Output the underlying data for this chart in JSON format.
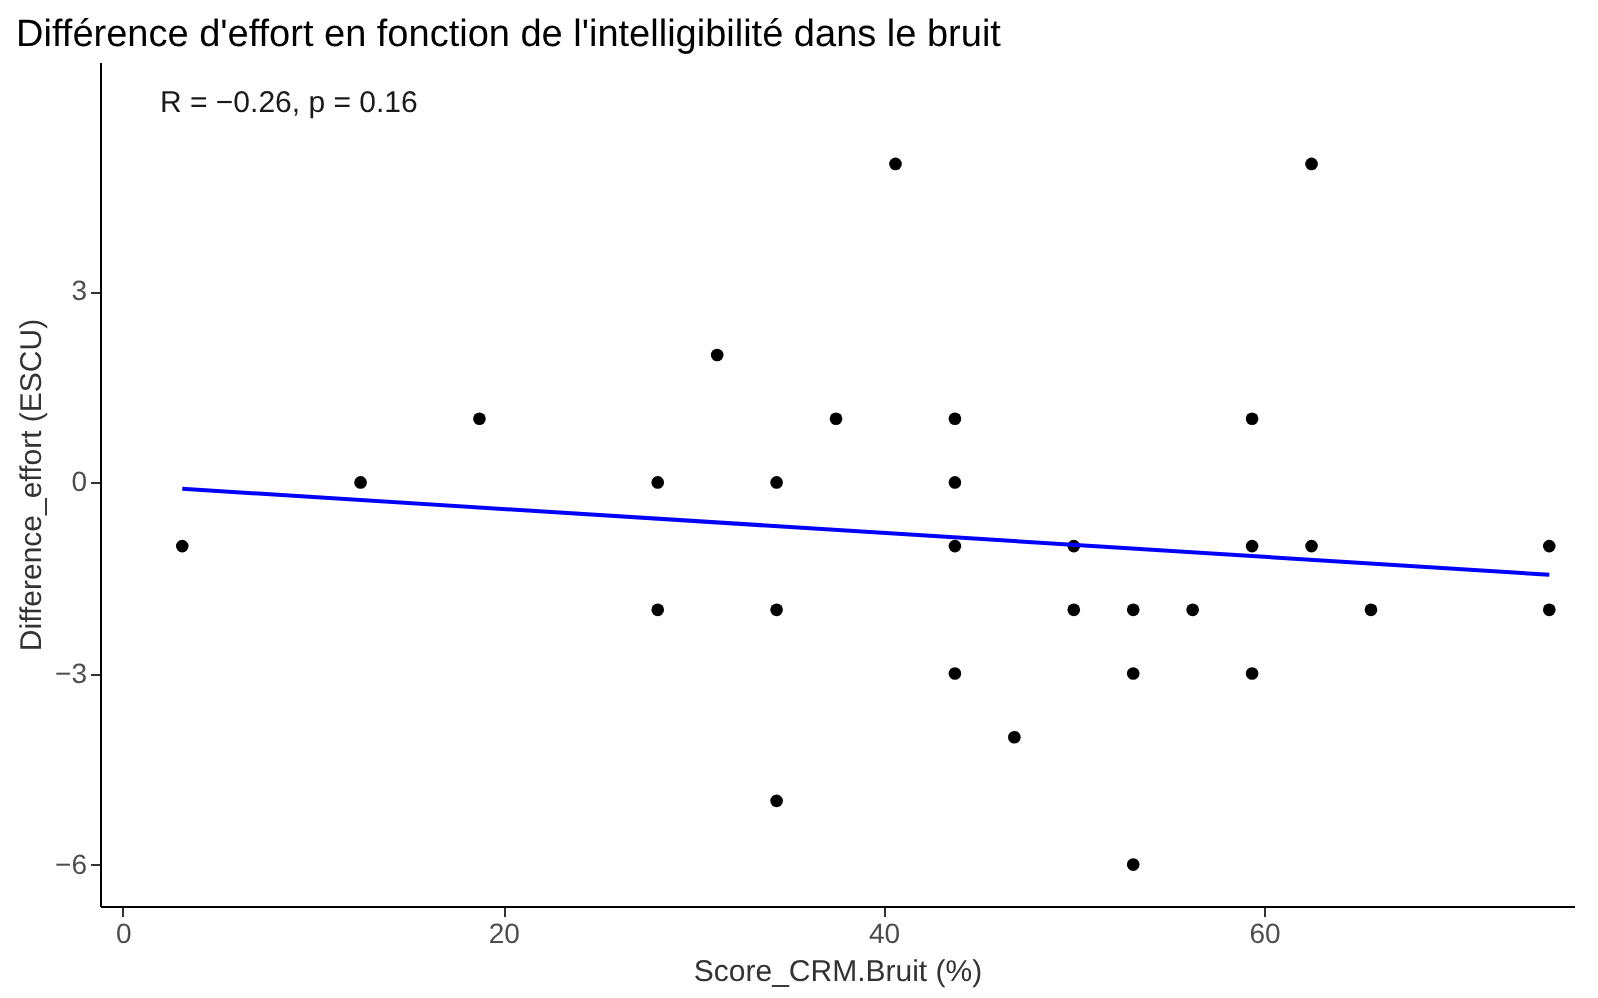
{
  "chart_data": {
    "type": "scatter",
    "title": "Différence d'effort en fonction de l'intelligibilité dans le bruit",
    "xlabel": "Score_CRM.Bruit (%)",
    "ylabel": "Difference_effort (ESCU)",
    "xlim": [
      -1.2,
      76.3
    ],
    "xticks": [
      0,
      20,
      40,
      60
    ],
    "ylim": [
      -6.65,
      6.6
    ],
    "yticks": [
      -6,
      -3,
      0,
      3
    ],
    "grid": false,
    "annotations": [
      "R = −0.26, p = 0.16"
    ],
    "series": [
      {
        "color": "#000000",
        "marker": "circle",
        "x": [
          3.125,
          12.5,
          18.75,
          28.125,
          28.125,
          31.25,
          34.375,
          34.375,
          34.375,
          37.5,
          40.625,
          43.75,
          43.75,
          43.75,
          43.75,
          46.875,
          50,
          50,
          53.125,
          53.125,
          53.125,
          56.25,
          59.375,
          59.375,
          59.375,
          62.5,
          62.5,
          65.625,
          75,
          75
        ],
        "values": [
          -1,
          0,
          1,
          0,
          -2,
          2,
          0,
          -2,
          -5,
          1,
          5,
          1,
          0,
          -1,
          -3,
          -4,
          -1,
          -2,
          -2,
          -3,
          -6,
          -2,
          1,
          -1,
          -3,
          5,
          -1,
          -2,
          -1,
          -2
        ]
      },
      {
        "type": "line",
        "color": "#0000ff",
        "marker": "none",
        "line_style": "solid",
        "x": [
          3.125,
          75
        ],
        "values": [
          -0.1,
          -1.45
        ]
      }
    ]
  }
}
